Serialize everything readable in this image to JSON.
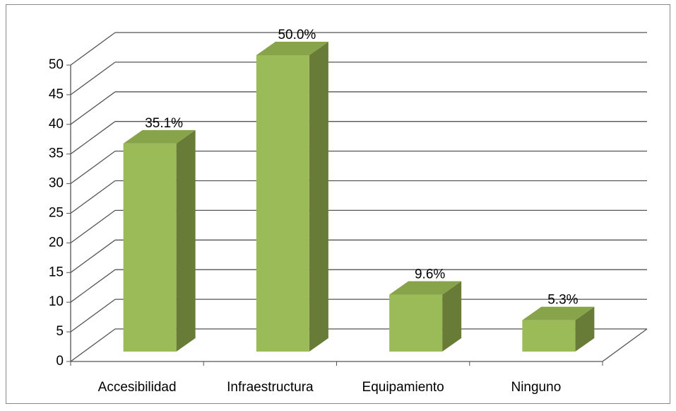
{
  "chart_data": {
    "type": "bar3d",
    "categories": [
      "Accesibilidad",
      "Infraestructura",
      "Equipamiento",
      "Ninguno"
    ],
    "values": [
      35.1,
      50.0,
      9.6,
      5.3
    ],
    "value_labels": [
      "35.1%",
      "50.0%",
      "9.6%",
      "5.3%"
    ],
    "color": "#9bbb59",
    "ylim": [
      0,
      50
    ],
    "yticks": [
      0,
      5,
      10,
      15,
      20,
      25,
      30,
      35,
      40,
      45,
      50
    ],
    "grid": true
  }
}
